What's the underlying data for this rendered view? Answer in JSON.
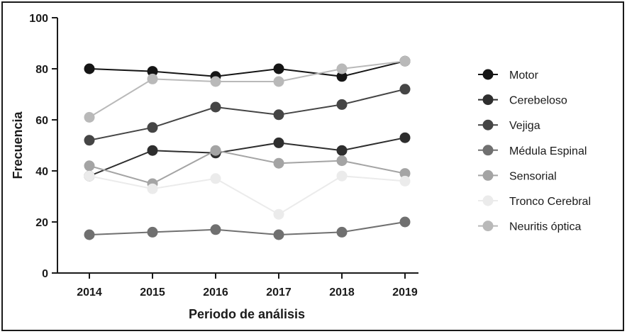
{
  "chart_data": {
    "type": "line",
    "xlabel": "Periodo de análisis",
    "ylabel": "Frecuencia",
    "x": [
      "2014",
      "2015",
      "2016",
      "2017",
      "2018",
      "2019"
    ],
    "ylim": [
      0,
      100
    ],
    "yticks": [
      "0",
      "20",
      "40",
      "60",
      "80",
      "100"
    ],
    "grid": false,
    "legend_position": "right",
    "series": [
      {
        "name": "Motor",
        "color": "#151515",
        "values": [
          80,
          79,
          77,
          80,
          77,
          83
        ]
      },
      {
        "name": "Cerebeloso",
        "color": "#2e2e2e",
        "values": [
          38,
          48,
          47,
          51,
          48,
          53
        ]
      },
      {
        "name": "Vejiga",
        "color": "#454545",
        "values": [
          52,
          57,
          65,
          62,
          66,
          72
        ]
      },
      {
        "name": "Médula Espinal",
        "color": "#707070",
        "values": [
          15,
          16,
          17,
          15,
          16,
          20
        ]
      },
      {
        "name": " Sensorial",
        "color": "#a4a4a4",
        "values": [
          42,
          35,
          48,
          43,
          44,
          39
        ]
      },
      {
        "name": "Tronco Cerebral",
        "color": "#ebebeb",
        "values": [
          38,
          33,
          37,
          23,
          38,
          36
        ]
      },
      {
        "name": "Neuritis óptica",
        "color": "#b9b9b9",
        "values": [
          61,
          76,
          75,
          75,
          80,
          83
        ]
      }
    ]
  }
}
